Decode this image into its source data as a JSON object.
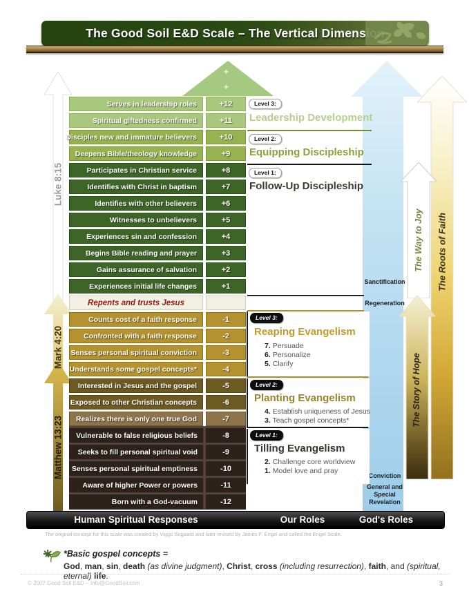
{
  "title": "The Good Soil E&D Scale – The Vertical Dimension",
  "scale": {
    "plus_marks": [
      "+",
      "+"
    ],
    "rows": [
      {
        "label": "Serves in leadership roles",
        "value": "+12"
      },
      {
        "label": "Spiritual giftedness confirmed",
        "value": "+11"
      },
      {
        "label": "Disciples new and immature believers",
        "value": "+10"
      },
      {
        "label": "Deepens Bible/theology knowledge",
        "value": "+9"
      },
      {
        "label": "Participates in Christian service",
        "value": "+8"
      },
      {
        "label": "Identifies with Christ in baptism",
        "value": "+7"
      },
      {
        "label": "Identifies with other believers",
        "value": "+6"
      },
      {
        "label": "Witnesses to unbelievers",
        "value": "+5"
      },
      {
        "label": "Experiences sin and confession",
        "value": "+4"
      },
      {
        "label": "Begins Bible reading and prayer",
        "value": "+3"
      },
      {
        "label": "Gains assurance of salvation",
        "value": "+2"
      },
      {
        "label": "Experiences initial life changes",
        "value": "+1"
      },
      {
        "label": "Counts cost of a faith response",
        "value": "-1"
      },
      {
        "label": "Confronted with a faith response",
        "value": "-2"
      },
      {
        "label": "Senses personal spiritual conviction",
        "value": "-3"
      },
      {
        "label": "Understands some gospel concepts*",
        "value": "-4"
      },
      {
        "label": "Interested in Jesus and the gospel",
        "value": "-5"
      },
      {
        "label": "Exposed to other Christian concepts",
        "value": "-6"
      },
      {
        "label": "Realizes there is only one true God",
        "value": "-7"
      },
      {
        "label": "Vulnerable to false religious beliefs",
        "value": "-8"
      },
      {
        "label": "Seeks to fill personal spiritual void",
        "value": "-9"
      },
      {
        "label": "Senses personal spiritual emptiness",
        "value": "-10"
      },
      {
        "label": "Aware of higher Power or powers",
        "value": "-11"
      },
      {
        "label": "Born with a God-vacuum",
        "value": "-12"
      }
    ],
    "repents_row": "Repents and trusts Jesus"
  },
  "left_labels": {
    "top": "Luke 8:15",
    "middle": "Mark 4:20",
    "bottom": "Matthew 13:23"
  },
  "right_panel": {
    "discipleship": [
      {
        "level": "Level 3:",
        "title": "Leadership Development"
      },
      {
        "level": "Level 2:",
        "title": "Equipping Discipleship"
      },
      {
        "level": "Level 1:",
        "title": "Follow-Up Discipleship"
      }
    ],
    "evangelism": [
      {
        "level": "Level 3:",
        "title": "Reaping Evangelism",
        "items": [
          {
            "n": "7.",
            "t": "Persuade"
          },
          {
            "n": "6.",
            "t": "Personalize"
          },
          {
            "n": "5.",
            "t": "Clarify"
          }
        ]
      },
      {
        "level": "Level 2:",
        "title": "Planting Evangelism",
        "items": [
          {
            "n": "4.",
            "t": "Establish uniqueness of Jesus"
          },
          {
            "n": "3.",
            "t": "Teach gospel concepts*"
          }
        ]
      },
      {
        "level": "Level 1:",
        "title": "Tilling Evangelism",
        "items": [
          {
            "n": "2.",
            "t": "Challenge core worldview"
          },
          {
            "n": "1.",
            "t": "Model love and pray"
          }
        ]
      }
    ]
  },
  "gods_roles_labels": {
    "sanctification": "Sanctification",
    "regeneration": "Regeneration",
    "conviction": "Conviction",
    "revelation_1": "General and",
    "revelation_2": "Special",
    "revelation_3": "Revelation"
  },
  "side_arrows": {
    "way_to_joy": "The Way to Joy",
    "roots_of_faith": "The Roots of Faith",
    "story_of_hope": "The Story of Hope"
  },
  "footer_bar": {
    "left": "Human Spiritual Responses",
    "middle": "Our Roles",
    "right": "God's Roles"
  },
  "caption": "The original concept for this scale was created by Viggo Sogaard and later revised by James F. Engel and called the Engel Scale.",
  "gospel": {
    "heading": "*Basic gospel concepts =",
    "segments": [
      {
        "t": "God",
        "b": true
      },
      {
        "t": ", "
      },
      {
        "t": "man",
        "b": true
      },
      {
        "t": ", "
      },
      {
        "t": "sin",
        "b": true
      },
      {
        "t": ", "
      },
      {
        "t": "death",
        "b": true
      },
      {
        "t": " "
      },
      {
        "t": "(as divine judgment)",
        "i": true
      },
      {
        "t": ", "
      },
      {
        "t": "Christ",
        "b": true
      },
      {
        "t": ", "
      },
      {
        "t": "cross",
        "b": true
      },
      {
        "t": " "
      },
      {
        "t": "(including resurrection)",
        "i": true
      },
      {
        "t": ", "
      },
      {
        "t": "faith",
        "b": true
      },
      {
        "t": ", and "
      },
      {
        "t": "(spiritual, eternal)",
        "i": true
      },
      {
        "t": " "
      },
      {
        "t": "life",
        "b": true
      },
      {
        "t": "."
      }
    ]
  },
  "page_footer": {
    "copyright": "© 2007 Good Soil E&D – Info@GoodSoil.com",
    "page": "3"
  },
  "colors": {
    "banner_green": "#2b4a14",
    "light_green_row": "#aac87d",
    "medium_green_row": "#97b250",
    "dark_green_row": "#3d6527",
    "gold_row": "#b3922f",
    "dark_olive_row": "#6d5a23",
    "tan_row": "#8d744a",
    "dark_brown_row": "#2d211b",
    "repent_red": "#8e1a10",
    "blue_arrow": "#a5d2ea",
    "reaping_gold": "#bf9b2e",
    "planting_olive": "#97822e"
  }
}
